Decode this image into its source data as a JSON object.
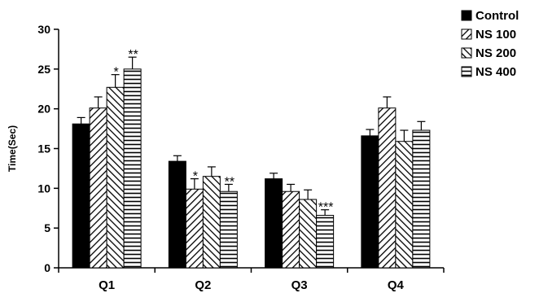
{
  "chart_data": {
    "type": "bar",
    "title": "",
    "xlabel": "",
    "ylabel": "Time(Sec)",
    "ylim": [
      0,
      30
    ],
    "yticks": [
      0,
      5,
      10,
      15,
      20,
      25,
      30
    ],
    "grid": false,
    "legend_position": "top-right",
    "categories": [
      "Q1",
      "Q2",
      "Q3",
      "Q4"
    ],
    "series": [
      {
        "name": "Control",
        "pattern": "solid",
        "values": [
          18.1,
          13.4,
          11.2,
          16.6
        ],
        "errors": [
          0.8,
          0.7,
          0.7,
          0.8
        ],
        "significance": [
          "",
          "",
          "",
          ""
        ]
      },
      {
        "name": "NS 100",
        "pattern": "diagonal-up",
        "values": [
          20.1,
          9.9,
          9.6,
          20.1
        ],
        "errors": [
          1.4,
          1.3,
          0.9,
          1.4
        ],
        "significance": [
          "",
          "*",
          "",
          ""
        ]
      },
      {
        "name": "NS 200",
        "pattern": "diagonal-down",
        "values": [
          22.7,
          11.5,
          8.6,
          15.9
        ],
        "errors": [
          1.6,
          1.2,
          1.2,
          1.4
        ],
        "significance": [
          "*",
          "",
          "",
          ""
        ]
      },
      {
        "name": "NS 400",
        "pattern": "horizontal",
        "values": [
          25.0,
          9.6,
          6.6,
          17.3
        ],
        "errors": [
          1.5,
          0.9,
          0.7,
          1.1
        ],
        "significance": [
          "**",
          "**",
          "***",
          ""
        ]
      }
    ]
  }
}
